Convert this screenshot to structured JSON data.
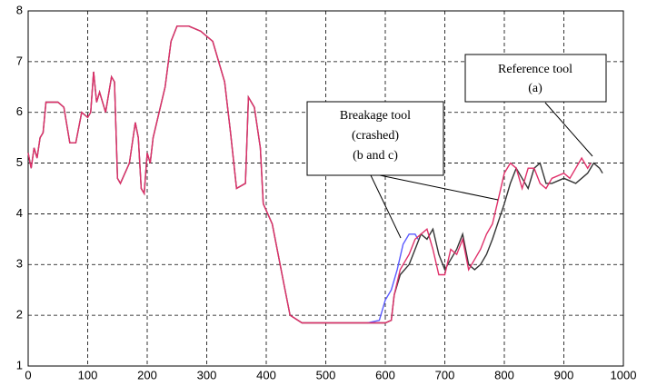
{
  "chart_data": {
    "type": "line",
    "xlim": [
      0,
      1000
    ],
    "xticks": [
      0,
      100,
      200,
      300,
      400,
      500,
      600,
      700,
      800,
      900,
      1000
    ],
    "ylim": [
      1,
      8
    ],
    "yticks": [
      1,
      2,
      3,
      4,
      5,
      6,
      7,
      8
    ],
    "grid": true,
    "series": [
      {
        "name": "Reference tool (a)",
        "color": "#333333",
        "x": [
          0,
          5,
          10,
          15,
          20,
          25,
          30,
          50,
          60,
          70,
          80,
          90,
          100,
          105,
          110,
          115,
          120,
          130,
          140,
          145,
          150,
          155,
          170,
          180,
          185,
          190,
          195,
          200,
          205,
          210,
          230,
          240,
          250,
          270,
          290,
          310,
          330,
          340,
          350,
          365,
          370,
          380,
          390,
          395,
          410,
          430,
          440,
          460,
          500,
          600,
          610,
          615,
          625,
          640,
          650,
          660,
          670,
          680,
          690,
          700,
          710,
          720,
          730,
          740,
          750,
          760,
          770,
          780,
          800,
          810,
          820,
          830,
          840,
          850,
          860,
          870,
          880,
          900,
          920,
          940,
          950,
          960,
          965
        ],
        "values": [
          5.2,
          4.9,
          5.3,
          5.1,
          5.5,
          5.6,
          6.2,
          6.2,
          6.1,
          5.4,
          5.4,
          6.0,
          5.9,
          6.0,
          6.8,
          6.2,
          6.4,
          6.0,
          6.7,
          6.6,
          4.7,
          4.6,
          5.0,
          5.8,
          5.5,
          4.5,
          4.4,
          5.2,
          5.0,
          5.5,
          6.5,
          7.4,
          7.7,
          7.7,
          7.6,
          7.4,
          6.6,
          5.6,
          4.5,
          4.6,
          6.3,
          6.1,
          5.3,
          4.2,
          3.8,
          2.6,
          2.0,
          1.85,
          1.85,
          1.85,
          1.9,
          2.4,
          2.8,
          3.0,
          3.3,
          3.6,
          3.5,
          3.7,
          3.2,
          2.9,
          3.1,
          3.3,
          3.6,
          3.0,
          2.9,
          3.0,
          3.2,
          3.5,
          4.2,
          4.6,
          4.9,
          4.7,
          4.5,
          4.9,
          5.0,
          4.6,
          4.6,
          4.7,
          4.6,
          4.8,
          5.0,
          4.9,
          4.8
        ]
      },
      {
        "name": "Breakage tool b",
        "color": "#5a5aff",
        "x": [
          570,
          590,
          600,
          610,
          620,
          630,
          640,
          650,
          655
        ],
        "values": [
          1.85,
          1.9,
          2.3,
          2.5,
          2.9,
          3.4,
          3.6,
          3.6,
          3.5
        ]
      },
      {
        "name": "Breakage tool c",
        "color": "#e0306a",
        "x": [
          0,
          5,
          10,
          15,
          20,
          25,
          30,
          50,
          60,
          70,
          80,
          90,
          100,
          105,
          110,
          115,
          120,
          130,
          140,
          145,
          150,
          155,
          170,
          180,
          185,
          190,
          195,
          200,
          205,
          210,
          230,
          240,
          250,
          270,
          290,
          310,
          330,
          340,
          350,
          365,
          370,
          380,
          390,
          395,
          410,
          430,
          440,
          460,
          500,
          600,
          610,
          615,
          625,
          630,
          640,
          650,
          660,
          670,
          680,
          690,
          700,
          710,
          720,
          730,
          740,
          750,
          760,
          770,
          780,
          790,
          800,
          810,
          820,
          830,
          840,
          850,
          860,
          870,
          880,
          900,
          910,
          920,
          930,
          940,
          945
        ],
        "values": [
          5.2,
          4.9,
          5.3,
          5.1,
          5.5,
          5.6,
          6.2,
          6.2,
          6.1,
          5.4,
          5.4,
          6.0,
          5.9,
          6.0,
          6.8,
          6.2,
          6.4,
          6.0,
          6.7,
          6.6,
          4.7,
          4.6,
          5.0,
          5.8,
          5.5,
          4.5,
          4.4,
          5.2,
          5.0,
          5.5,
          6.5,
          7.4,
          7.7,
          7.7,
          7.6,
          7.4,
          6.6,
          5.6,
          4.5,
          4.6,
          6.3,
          6.1,
          5.3,
          4.2,
          3.8,
          2.6,
          2.0,
          1.85,
          1.85,
          1.85,
          1.9,
          2.4,
          2.9,
          3.0,
          3.2,
          3.5,
          3.6,
          3.7,
          3.3,
          2.8,
          2.8,
          3.3,
          3.2,
          3.5,
          2.9,
          3.1,
          3.3,
          3.6,
          3.8,
          4.3,
          4.8,
          5.0,
          4.9,
          4.5,
          4.9,
          4.9,
          4.6,
          4.5,
          4.7,
          4.8,
          4.7,
          4.9,
          5.1,
          4.9,
          5.0
        ]
      }
    ],
    "annotations": [
      {
        "lines": [
          "Reference  tool",
          "(a)"
        ]
      },
      {
        "lines": [
          "Breakage tool",
          "(crashed)",
          "(b and c)"
        ]
      }
    ]
  }
}
